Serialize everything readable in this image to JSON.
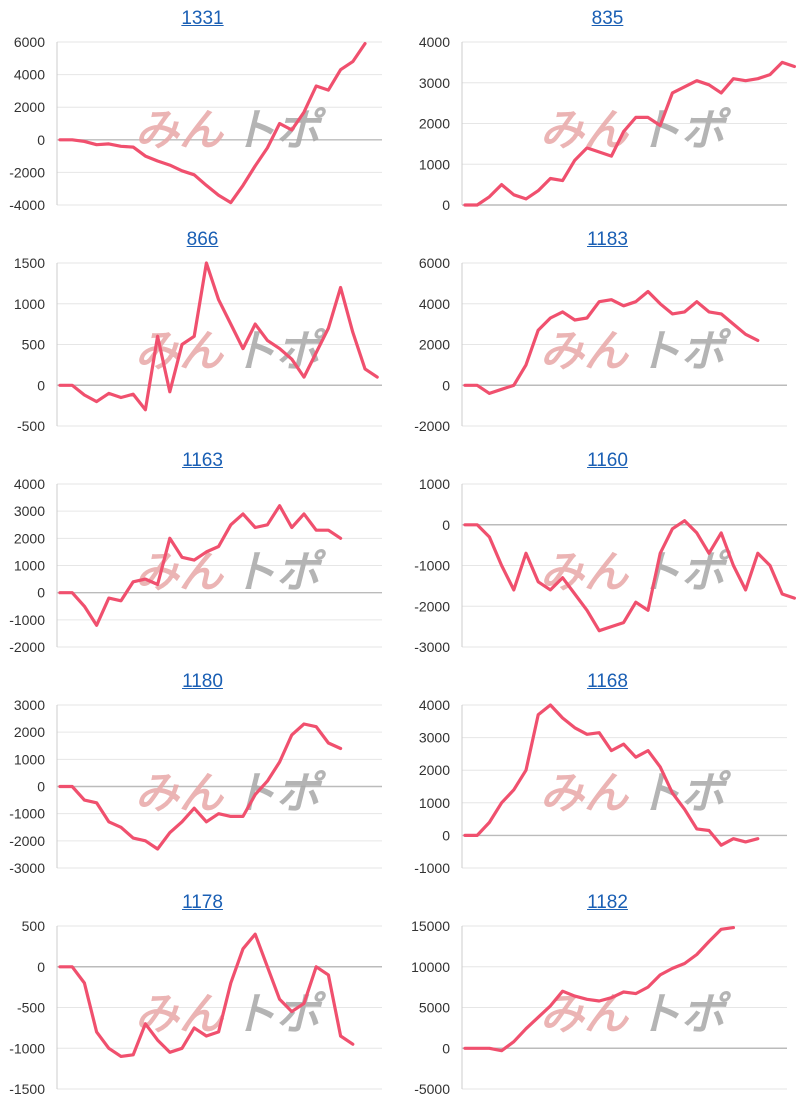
{
  "colors": {
    "line": "#f0506e",
    "grid": "#e6e6e6",
    "zero_line": "#bbbbbb",
    "axis": "#cccccc",
    "title_link": "#1a5fb4",
    "watermark_pink": "#e8a8a8",
    "watermark_gray": "#a8a8a8"
  },
  "watermark": {
    "part1": "みん",
    "part2": "トポ",
    "description": "pale site logo behind each chart"
  },
  "chart_data": [
    {
      "type": "line",
      "title": "1331",
      "yticks": [
        6000,
        4000,
        2000,
        0,
        -2000,
        -4000
      ],
      "ylim": [
        -4000,
        6000
      ],
      "values": [
        0,
        0,
        -100,
        -300,
        -250,
        -400,
        -450,
        -1000,
        -1300,
        -1550,
        -1900,
        -2150,
        -2800,
        -3400,
        -3850,
        -2800,
        -1600,
        -500,
        1000,
        600,
        1700,
        3300,
        3050,
        4300,
        4800,
        5900
      ]
    },
    {
      "type": "line",
      "title": "835",
      "yticks": [
        4000,
        3000,
        2000,
        1000,
        0
      ],
      "ylim": [
        0,
        4000
      ],
      "values": [
        0,
        0,
        200,
        500,
        250,
        150,
        350,
        650,
        600,
        1100,
        1400,
        1300,
        1200,
        1800,
        2150,
        2150,
        1950,
        2750,
        2900,
        3050,
        2950,
        2750,
        3100,
        3050,
        3100,
        3200,
        3500,
        3400
      ]
    },
    {
      "type": "line",
      "title": "866",
      "yticks": [
        1500,
        1000,
        500,
        0,
        -500
      ],
      "ylim": [
        -500,
        1500
      ],
      "values": [
        0,
        0,
        -120,
        -200,
        -100,
        -150,
        -110,
        -300,
        600,
        -80,
        500,
        600,
        1500,
        1050,
        750,
        450,
        750,
        550,
        450,
        320,
        100,
        400,
        700,
        1200,
        650,
        200,
        100
      ]
    },
    {
      "type": "line",
      "title": "1183",
      "yticks": [
        6000,
        4000,
        2000,
        0,
        -2000
      ],
      "ylim": [
        -2000,
        6000
      ],
      "values": [
        0,
        0,
        -400,
        -200,
        0,
        1000,
        2700,
        3300,
        3600,
        3200,
        3300,
        4100,
        4200,
        3900,
        4100,
        4600,
        4000,
        3500,
        3600,
        4100,
        3600,
        3500,
        3000,
        2500,
        2200
      ]
    },
    {
      "type": "line",
      "title": "1163",
      "yticks": [
        4000,
        3000,
        2000,
        1000,
        0,
        -1000,
        -2000
      ],
      "ylim": [
        -2000,
        4000
      ],
      "values": [
        0,
        0,
        -500,
        -1200,
        -200,
        -300,
        400,
        500,
        300,
        2000,
        1300,
        1200,
        1500,
        1700,
        2500,
        2900,
        2400,
        2500,
        3200,
        2400,
        2900,
        2300,
        2300,
        2000
      ]
    },
    {
      "type": "line",
      "title": "1160",
      "yticks": [
        1000,
        0,
        -1000,
        -2000,
        -3000
      ],
      "ylim": [
        -3000,
        1000
      ],
      "values": [
        0,
        0,
        -300,
        -1000,
        -1600,
        -700,
        -1400,
        -1600,
        -1300,
        -1700,
        -2100,
        -2600,
        -2500,
        -2400,
        -1900,
        -2100,
        -700,
        -100,
        100,
        -200,
        -700,
        -200,
        -1000,
        -1600,
        -700,
        -1000,
        -1700,
        -1800
      ]
    },
    {
      "type": "line",
      "title": "1180",
      "yticks": [
        3000,
        2000,
        1000,
        0,
        -1000,
        -2000,
        -3000
      ],
      "ylim": [
        -3000,
        3000
      ],
      "values": [
        0,
        0,
        -500,
        -600,
        -1300,
        -1500,
        -1900,
        -2000,
        -2300,
        -1700,
        -1300,
        -800,
        -1300,
        -1000,
        -1100,
        -1100,
        -300,
        200,
        900,
        1900,
        2300,
        2200,
        1600,
        1400
      ]
    },
    {
      "type": "line",
      "title": "1168",
      "yticks": [
        4000,
        3000,
        2000,
        1000,
        0,
        -1000
      ],
      "ylim": [
        -1000,
        4000
      ],
      "values": [
        0,
        0,
        400,
        1000,
        1400,
        2000,
        3700,
        4000,
        3600,
        3300,
        3100,
        3150,
        2600,
        2800,
        2400,
        2600,
        2100,
        1300,
        800,
        200,
        150,
        -300,
        -100,
        -200,
        -100
      ]
    },
    {
      "type": "line",
      "title": "1178",
      "yticks": [
        500,
        0,
        -500,
        -1000,
        -1500
      ],
      "ylim": [
        -1500,
        500
      ],
      "values": [
        0,
        0,
        -200,
        -800,
        -1000,
        -1100,
        -1080,
        -700,
        -900,
        -1050,
        -1000,
        -750,
        -850,
        -800,
        -200,
        220,
        400,
        0,
        -400,
        -550,
        -450,
        0,
        -100,
        -850,
        -950
      ]
    },
    {
      "type": "line",
      "title": "1182",
      "yticks": [
        15000,
        10000,
        5000,
        0,
        -5000
      ],
      "ylim": [
        -5000,
        15000
      ],
      "values": [
        0,
        0,
        0,
        -300,
        800,
        2400,
        3800,
        5200,
        7000,
        6400,
        6000,
        5800,
        6200,
        6900,
        6700,
        7500,
        9000,
        9800,
        10400,
        11500,
        13100,
        14600,
        14800
      ]
    }
  ]
}
